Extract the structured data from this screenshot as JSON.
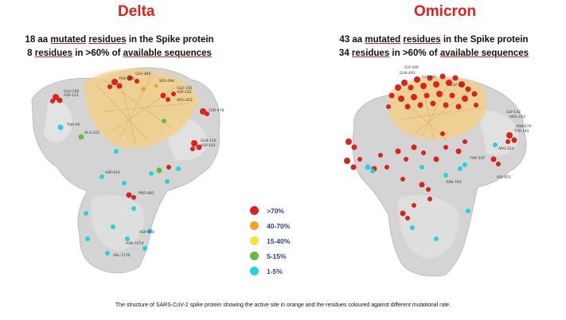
{
  "delta": {
    "title": "Delta",
    "line1": {
      "pre": "18 aa ",
      "u1": "mutated",
      "mid": " ",
      "u2": "residues",
      "post": " in the Spike protein"
    },
    "line2": {
      "pre": "8 ",
      "u1": "residues",
      "mid": " in >60% of ",
      "u2": "available sequences",
      "post": ""
    }
  },
  "omicron": {
    "title": "Omicron",
    "line1": {
      "pre": "43 aa ",
      "u1": "mutated",
      "mid": " ",
      "u2": "residues",
      "post": " in the Spike protein"
    },
    "line2": {
      "pre": "34 ",
      "u1": "residues",
      "mid": " in >60% of ",
      "u2": "available sequences",
      "post": ""
    }
  },
  "legend": [
    {
      "label": ">70%",
      "color": "#e0201a"
    },
    {
      "label": "40-70%",
      "color": "#f2a524"
    },
    {
      "label": "15-40%",
      "color": "#f7e53b"
    },
    {
      "label": "5-15%",
      "color": "#5cc23c"
    },
    {
      "label": "1-5%",
      "color": "#21d4e3"
    }
  ],
  "residue_labels": {
    "delta": [
      "GLU-156",
      "ASP-142",
      "THR-95",
      "ALA-222",
      "GLU-484",
      "PHE-490",
      "GLU-156",
      "ASP-142",
      "SER-494",
      "ARG-452",
      "THR-478",
      "GLN-156",
      "ASP-142",
      "ASP-614",
      "PRO-681",
      "ASP-950",
      "ASN-1074",
      "VAL-1176"
    ],
    "omicron": [
      "GLY-446",
      "GLN-493",
      "GLY-440",
      "GLY-417",
      "GLY-142",
      "ARG-143",
      "ASN-679",
      "TYR-145",
      "ARG-214",
      "HIS-655",
      "ASN-764",
      "THR-547"
    ]
  },
  "caption": "The structure of SARS-CoV-2 spike protein showing the active site in orange and the residues coloured against different mutational rate."
}
